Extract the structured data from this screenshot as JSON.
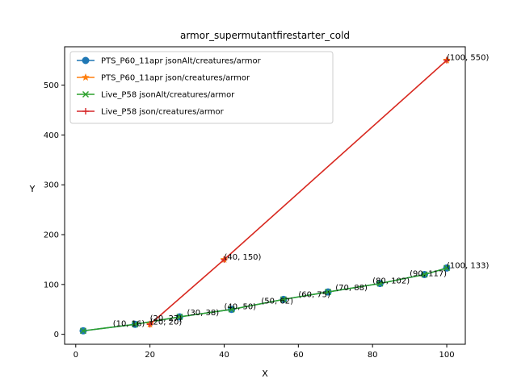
{
  "chart_data": {
    "type": "line",
    "title": "armor_supermutantfirestarter_cold",
    "xlabel": "X",
    "ylabel": "Y",
    "xlim": [
      -3,
      105
    ],
    "ylim": [
      -20,
      577
    ],
    "xticks": [
      0,
      20,
      40,
      60,
      80,
      100
    ],
    "yticks": [
      0,
      100,
      200,
      300,
      400,
      500
    ],
    "grid": false,
    "legend_position": "upper-left",
    "series": [
      {
        "name": "PTS_P60_11apr jsonAlt/creatures/armor",
        "color": "#1f77b4",
        "marker": "circle",
        "x": [
          2,
          16,
          28,
          42,
          56,
          68,
          82,
          94,
          100
        ],
        "y": [
          7,
          20,
          35,
          50,
          70,
          85,
          102,
          120,
          133
        ]
      },
      {
        "name": "PTS_P60_11apr json/creatures/armor",
        "color": "#ff7f0e",
        "marker": "star",
        "x": [
          20,
          40,
          100
        ],
        "y": [
          20,
          150,
          550
        ]
      },
      {
        "name": "Live_P58 jsonAlt/creatures/armor",
        "color": "#2ca02c",
        "marker": "x",
        "x": [
          2,
          16,
          28,
          42,
          56,
          68,
          82,
          94,
          100
        ],
        "y": [
          7,
          20,
          35,
          50,
          70,
          85,
          102,
          120,
          133
        ]
      },
      {
        "name": "Live_P58 json/creatures/armor",
        "color": "#d62728",
        "marker": "plus",
        "x": [
          20,
          40,
          100
        ],
        "y": [
          20,
          150,
          550
        ]
      }
    ],
    "annotations": [
      {
        "text": "(10, 16)",
        "x": 10,
        "y": 16
      },
      {
        "text": "(20, 20)",
        "x": 20,
        "y": 20
      },
      {
        "text": "(20, 27)",
        "x": 20,
        "y": 27
      },
      {
        "text": "(30, 38)",
        "x": 30,
        "y": 38
      },
      {
        "text": "(40, 50)",
        "x": 40,
        "y": 50
      },
      {
        "text": "(40, 150)",
        "x": 40,
        "y": 150
      },
      {
        "text": "(50, 62)",
        "x": 50,
        "y": 62
      },
      {
        "text": "(60, 75)",
        "x": 60,
        "y": 75
      },
      {
        "text": "(70, 88)",
        "x": 70,
        "y": 88
      },
      {
        "text": "(80, 102)",
        "x": 80,
        "y": 102
      },
      {
        "text": "(90, 117)",
        "x": 90,
        "y": 117
      },
      {
        "text": "(100, 133)",
        "x": 100,
        "y": 133
      },
      {
        "text": "(100, 550)",
        "x": 100,
        "y": 550
      }
    ]
  }
}
